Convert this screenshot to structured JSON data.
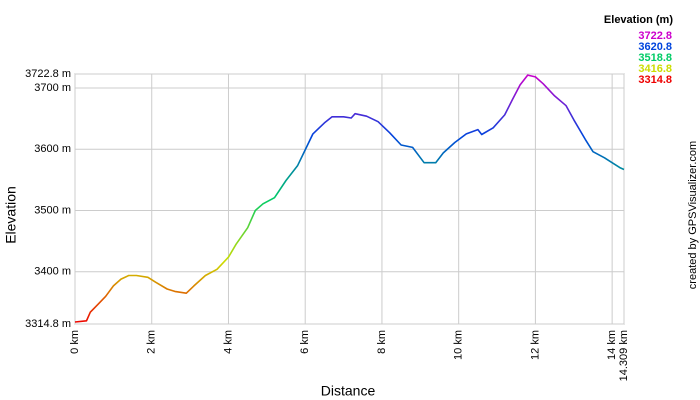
{
  "chart_data": {
    "type": "line",
    "xlabel": "Distance",
    "ylabel": "Elevation",
    "credit": "created by GPSVisualizer.com",
    "legend_title": "Elevation (m)",
    "color_scale": [
      {
        "value": 3722.8,
        "color": "#cc00cc"
      },
      {
        "value": 3620.8,
        "color": "#0044dd"
      },
      {
        "value": 3518.8,
        "color": "#00cc66"
      },
      {
        "value": 3416.8,
        "color": "#ccdd00"
      },
      {
        "value": 3314.8,
        "color": "#ee0000"
      }
    ],
    "x": [
      0,
      0.3,
      0.4,
      0.6,
      0.8,
      1.0,
      1.2,
      1.4,
      1.6,
      1.9,
      2.1,
      2.4,
      2.6,
      2.9,
      3.1,
      3.4,
      3.7,
      4.0,
      4.2,
      4.5,
      4.7,
      4.9,
      5.2,
      5.5,
      5.8,
      6.0,
      6.2,
      6.5,
      6.7,
      7.0,
      7.2,
      7.3,
      7.6,
      7.9,
      8.2,
      8.5,
      8.8,
      9.1,
      9.4,
      9.6,
      9.9,
      10.2,
      10.5,
      10.6,
      10.9,
      11.2,
      11.4,
      11.6,
      11.8,
      12.0,
      12.2,
      12.5,
      12.8,
      13.0,
      13.3,
      13.5,
      13.8,
      14.0,
      14.2,
      14.309
    ],
    "values": [
      3318,
      3320,
      3334,
      3347,
      3360,
      3377,
      3388,
      3394,
      3394,
      3391,
      3383,
      3372,
      3368,
      3365,
      3377,
      3394,
      3404,
      3424,
      3445,
      3472,
      3500,
      3511,
      3521,
      3549,
      3573,
      3599,
      3625,
      3643,
      3653,
      3653,
      3651,
      3658,
      3654,
      3645,
      3627,
      3607,
      3603,
      3578,
      3578,
      3594,
      3611,
      3625,
      3632,
      3624,
      3635,
      3656,
      3681,
      3705,
      3721,
      3718,
      3707,
      3687,
      3671,
      3648,
      3616,
      3596,
      3586,
      3578,
      3570,
      3567
    ],
    "xlim": [
      0,
      14.309
    ],
    "ylim": [
      3314.8,
      3722.8
    ],
    "xticks": [
      {
        "value": 0,
        "label": "0 km"
      },
      {
        "value": 2,
        "label": "2 km"
      },
      {
        "value": 4,
        "label": "4 km"
      },
      {
        "value": 6,
        "label": "6 km"
      },
      {
        "value": 8,
        "label": "8 km"
      },
      {
        "value": 10,
        "label": "10 km"
      },
      {
        "value": 12,
        "label": "12 km"
      },
      {
        "value": 14,
        "label": "14 km"
      },
      {
        "value": 14.309,
        "label": "14.309 km"
      }
    ],
    "yticks": [
      {
        "value": 3314.8,
        "label": "3314.8 m"
      },
      {
        "value": 3400,
        "label": "3400 m"
      },
      {
        "value": 3500,
        "label": "3500 m"
      },
      {
        "value": 3600,
        "label": "3600 m"
      },
      {
        "value": 3700,
        "label": "3700 m"
      },
      {
        "value": 3722.8,
        "label": "3722.8 m"
      }
    ],
    "grid": true
  }
}
